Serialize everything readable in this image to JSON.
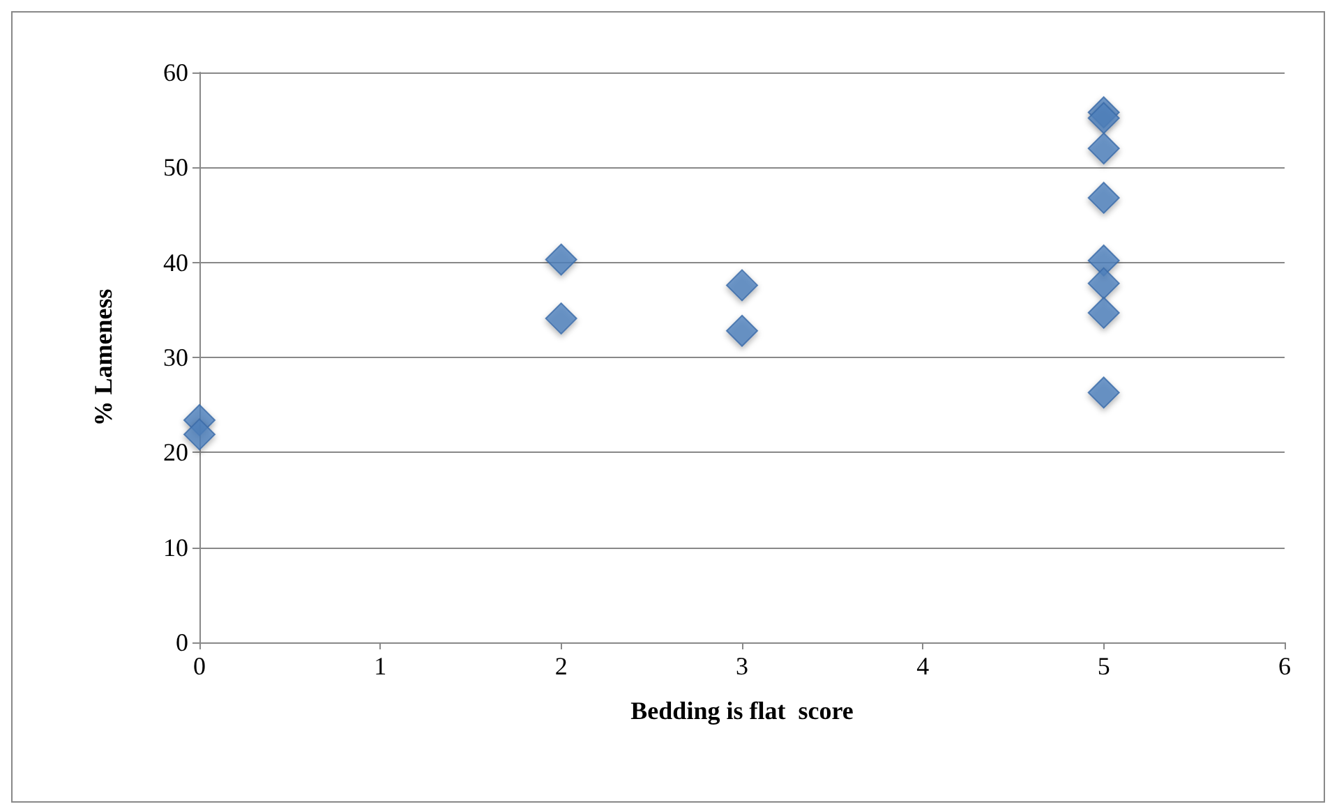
{
  "chart_data": {
    "type": "scatter",
    "xlabel": "Bedding is flat  score",
    "ylabel": "% Lameness",
    "x": [
      0,
      0,
      2,
      2,
      3,
      3,
      5,
      5,
      5,
      5,
      5,
      5,
      5,
      5
    ],
    "series": [
      {
        "color": "#4f81bd",
        "values": [
          23.4,
          21.9,
          40.3,
          34.1,
          37.6,
          32.8,
          55.8,
          55.2,
          52.0,
          46.8,
          40.2,
          37.8,
          34.7,
          26.3
        ]
      }
    ],
    "xlim": [
      0,
      6
    ],
    "xticks": [
      0,
      1,
      2,
      3,
      4,
      5,
      6
    ],
    "ylim": [
      0,
      60
    ],
    "yticks": [
      0,
      10,
      20,
      30,
      40,
      50,
      60
    ],
    "grid": "y",
    "marker": "diamond"
  }
}
